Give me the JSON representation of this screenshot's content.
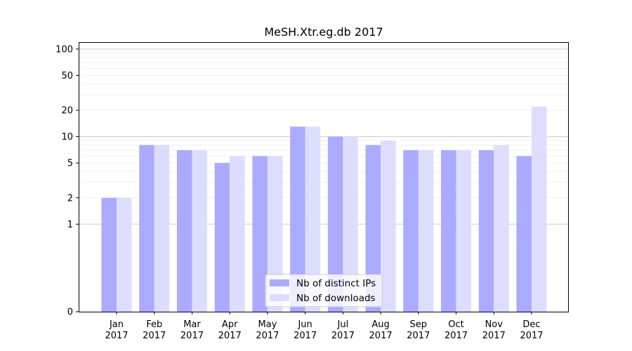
{
  "chart_data": {
    "type": "bar",
    "title": "MeSH.Xtr.eg.db 2017",
    "xlabel": "",
    "ylabel": "",
    "y_scale": "symlog",
    "ylim": [
      0,
      120
    ],
    "y_ticks": [
      0,
      1,
      2,
      5,
      10,
      20,
      50,
      100
    ],
    "categories": [
      {
        "month": "Jan",
        "year": "2017"
      },
      {
        "month": "Feb",
        "year": "2017"
      },
      {
        "month": "Mar",
        "year": "2017"
      },
      {
        "month": "Apr",
        "year": "2017"
      },
      {
        "month": "May",
        "year": "2017"
      },
      {
        "month": "Jun",
        "year": "2017"
      },
      {
        "month": "Jul",
        "year": "2017"
      },
      {
        "month": "Aug",
        "year": "2017"
      },
      {
        "month": "Sep",
        "year": "2017"
      },
      {
        "month": "Oct",
        "year": "2017"
      },
      {
        "month": "Nov",
        "year": "2017"
      },
      {
        "month": "Dec",
        "year": "2017"
      }
    ],
    "series": [
      {
        "name": "Nb of distinct IPs",
        "color": "#aaaaff",
        "values": [
          2,
          8,
          7,
          5,
          6,
          13,
          10,
          8,
          7,
          7,
          7,
          6
        ]
      },
      {
        "name": "Nb of downloads",
        "color": "#ddddff",
        "values": [
          2,
          8,
          7,
          6,
          6,
          13,
          10,
          9,
          7,
          7,
          8,
          22
        ]
      }
    ],
    "grid": true,
    "legend_position": "bottom-center"
  }
}
